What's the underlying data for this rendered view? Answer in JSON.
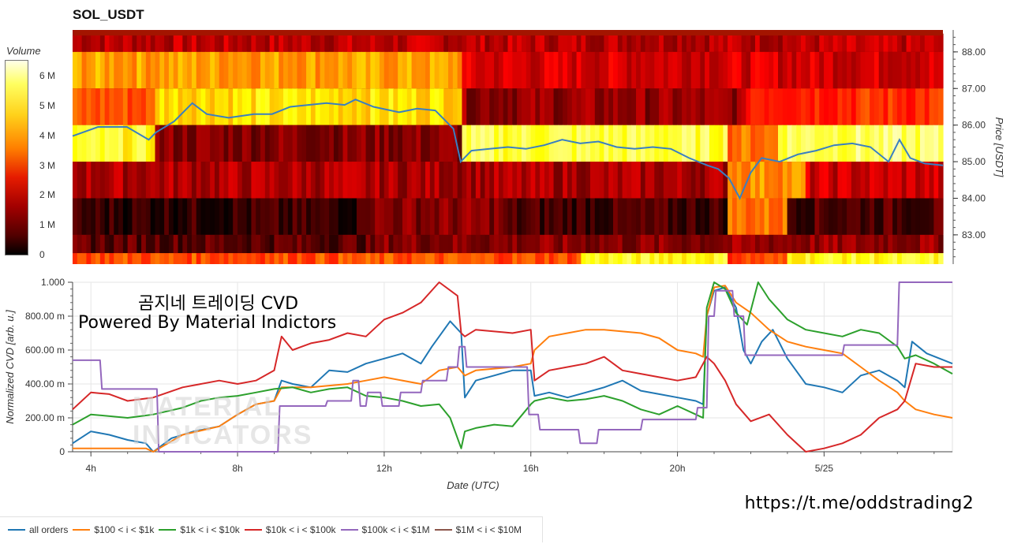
{
  "chart_data": [
    {
      "type": "heatmap",
      "title": "SOL_USDT",
      "colorbar": {
        "label": "Volume",
        "ticks": [
          "6 M",
          "5 M",
          "4 M",
          "3 M",
          "2 M",
          "1 M",
          "0"
        ],
        "range": [
          0,
          6500000
        ],
        "colormap": "hot"
      },
      "y_axis": {
        "label": "Price [USDT]",
        "ticks": [
          "88.00",
          "87.00",
          "86.00",
          "85.00",
          "84.00",
          "83.00"
        ],
        "range": [
          82.2,
          88.6
        ]
      },
      "x_range_hours": [
        3.5,
        27.5
      ],
      "price_bins": [
        82.5,
        83.0,
        84.0,
        85.0,
        86.0,
        87.0,
        88.0,
        88.5
      ],
      "price_line": {
        "x": [
          3.5,
          4.2,
          5.0,
          5.6,
          5.8,
          6.3,
          6.8,
          7.2,
          7.8,
          8.5,
          9.0,
          9.5,
          10.0,
          10.5,
          11.0,
          11.3,
          11.8,
          12.5,
          13.0,
          13.5,
          14.0,
          14.2,
          14.5,
          15.0,
          15.5,
          16.0,
          16.5,
          17.0,
          17.5,
          18.0,
          18.5,
          19.0,
          19.5,
          20.0,
          20.5,
          21.0,
          21.3,
          21.6,
          21.9,
          22.2,
          22.5,
          23.0,
          23.5,
          24.0,
          24.5,
          25.0,
          25.5,
          26.0,
          26.3,
          26.6,
          27.0,
          27.5
        ],
        "y": [
          85.7,
          85.95,
          85.95,
          85.6,
          85.8,
          86.1,
          86.6,
          86.3,
          86.2,
          86.3,
          86.3,
          86.5,
          86.55,
          86.6,
          86.55,
          86.7,
          86.5,
          86.35,
          86.45,
          86.4,
          85.9,
          85.0,
          85.3,
          85.35,
          85.4,
          85.35,
          85.45,
          85.6,
          85.5,
          85.55,
          85.4,
          85.35,
          85.4,
          85.35,
          85.1,
          84.9,
          84.8,
          84.55,
          84.0,
          84.7,
          85.1,
          85.0,
          85.2,
          85.3,
          85.45,
          85.5,
          85.4,
          85.0,
          85.6,
          85.1,
          84.95,
          84.9
        ]
      }
    },
    {
      "type": "line",
      "xlabel": "Date (UTC)",
      "ylabel": "Normalized CVD [arb. u.]",
      "x_ticks": [
        "4h",
        "8h",
        "12h",
        "16h",
        "20h",
        "5/25"
      ],
      "x_tick_hours": [
        4,
        8,
        12,
        16,
        20,
        24
      ],
      "x_range_hours": [
        3.5,
        27.5
      ],
      "y_ticks": [
        "0",
        "200.00 m",
        "400.00 m",
        "600.00 m",
        "800.00 m",
        "1.000"
      ],
      "ylim": [
        0,
        1
      ],
      "legend_position": "bottom",
      "series": [
        {
          "name": "all orders",
          "color": "#1f77b4",
          "x": [
            3.5,
            4.0,
            4.5,
            5.0,
            5.5,
            5.7,
            6.2,
            6.8,
            7.5,
            8.0,
            8.5,
            9.0,
            9.2,
            9.5,
            10.0,
            10.5,
            11.0,
            11.5,
            12.0,
            12.5,
            13.0,
            13.3,
            13.8,
            14.1,
            14.2,
            14.5,
            15.0,
            15.5,
            16.0,
            16.1,
            16.5,
            17.0,
            17.5,
            18.0,
            18.5,
            19.0,
            19.5,
            20.0,
            20.5,
            20.7,
            20.8,
            21.0,
            21.3,
            21.6,
            21.8,
            22.0,
            22.3,
            22.6,
            23.0,
            23.5,
            24.0,
            24.5,
            25.0,
            25.5,
            26.0,
            26.2,
            26.4,
            26.8,
            27.5
          ],
          "y": [
            0.05,
            0.12,
            0.1,
            0.07,
            0.05,
            0.0,
            0.08,
            0.12,
            0.15,
            0.22,
            0.28,
            0.3,
            0.42,
            0.4,
            0.38,
            0.48,
            0.47,
            0.52,
            0.55,
            0.58,
            0.52,
            0.62,
            0.77,
            0.7,
            0.32,
            0.42,
            0.45,
            0.48,
            0.48,
            0.33,
            0.35,
            0.32,
            0.35,
            0.38,
            0.42,
            0.36,
            0.34,
            0.32,
            0.3,
            0.28,
            0.8,
            0.95,
            0.97,
            0.85,
            0.6,
            0.52,
            0.65,
            0.72,
            0.55,
            0.4,
            0.38,
            0.35,
            0.45,
            0.48,
            0.42,
            0.38,
            0.65,
            0.58,
            0.52
          ]
        },
        {
          "name": "$100 < i < $1k",
          "color": "#ff7f0e",
          "x": [
            3.5,
            4.5,
            5.5,
            5.7,
            6.5,
            7.5,
            8.0,
            8.5,
            9.0,
            9.2,
            10.0,
            11.0,
            11.5,
            12.0,
            13.0,
            13.5,
            14.0,
            14.2,
            14.5,
            15.5,
            16.0,
            16.1,
            16.5,
            17.0,
            17.5,
            18.0,
            19.0,
            19.5,
            20.0,
            20.5,
            20.7,
            20.8,
            21.0,
            21.3,
            21.6,
            22.0,
            22.5,
            23.0,
            23.5,
            24.0,
            24.5,
            25.0,
            25.5,
            26.0,
            26.2,
            26.5,
            27.0,
            27.5
          ],
          "y": [
            0.02,
            0.02,
            0.02,
            0.0,
            0.1,
            0.15,
            0.22,
            0.28,
            0.3,
            0.38,
            0.38,
            0.4,
            0.42,
            0.44,
            0.4,
            0.48,
            0.5,
            0.45,
            0.48,
            0.5,
            0.52,
            0.6,
            0.68,
            0.7,
            0.72,
            0.72,
            0.7,
            0.67,
            0.6,
            0.58,
            0.56,
            0.8,
            0.97,
            0.98,
            0.88,
            0.82,
            0.72,
            0.65,
            0.62,
            0.6,
            0.58,
            0.5,
            0.42,
            0.35,
            0.3,
            0.25,
            0.22,
            0.2
          ]
        },
        {
          "name": "$1k < i < $10k",
          "color": "#2ca02c",
          "x": [
            3.5,
            4.0,
            5.0,
            5.7,
            6.5,
            7.0,
            7.5,
            8.0,
            8.5,
            9.0,
            9.5,
            10.0,
            10.5,
            11.0,
            11.5,
            12.0,
            12.5,
            13.0,
            13.5,
            13.8,
            14.1,
            14.2,
            14.5,
            15.0,
            15.5,
            16.0,
            16.1,
            16.5,
            17.0,
            17.5,
            18.0,
            18.5,
            19.0,
            19.5,
            20.0,
            20.5,
            20.7,
            20.8,
            21.0,
            21.3,
            21.6,
            21.9,
            22.2,
            22.5,
            23.0,
            23.5,
            24.0,
            24.5,
            25.0,
            25.5,
            26.0,
            26.2,
            26.5,
            27.0,
            27.5
          ],
          "y": [
            0.16,
            0.22,
            0.2,
            0.22,
            0.26,
            0.3,
            0.32,
            0.33,
            0.35,
            0.37,
            0.38,
            0.35,
            0.37,
            0.38,
            0.33,
            0.32,
            0.3,
            0.27,
            0.28,
            0.2,
            0.02,
            0.12,
            0.14,
            0.16,
            0.15,
            0.28,
            0.3,
            0.32,
            0.3,
            0.31,
            0.33,
            0.3,
            0.25,
            0.22,
            0.27,
            0.22,
            0.2,
            0.85,
            1.0,
            0.96,
            0.82,
            0.75,
            1.0,
            0.9,
            0.78,
            0.72,
            0.7,
            0.68,
            0.72,
            0.7,
            0.62,
            0.55,
            0.57,
            0.52,
            0.46
          ]
        },
        {
          "name": "$10k < i < $100k",
          "color": "#d62728",
          "x": [
            3.5,
            4.0,
            4.5,
            5.0,
            5.7,
            6.5,
            7.5,
            8.0,
            8.5,
            9.0,
            9.2,
            9.5,
            10.0,
            10.5,
            11.0,
            11.5,
            12.0,
            12.5,
            13.0,
            13.5,
            14.0,
            14.1,
            14.2,
            14.5,
            15.5,
            16.0,
            16.1,
            16.5,
            17.0,
            17.5,
            18.0,
            18.5,
            19.0,
            19.5,
            20.0,
            20.5,
            20.7,
            20.8,
            21.0,
            21.3,
            21.6,
            22.0,
            22.5,
            23.0,
            23.5,
            24.0,
            24.5,
            25.0,
            25.5,
            26.0,
            26.2,
            26.5,
            27.0,
            27.5
          ],
          "y": [
            0.25,
            0.35,
            0.34,
            0.3,
            0.32,
            0.38,
            0.42,
            0.4,
            0.42,
            0.48,
            0.68,
            0.6,
            0.64,
            0.66,
            0.7,
            0.68,
            0.78,
            0.82,
            0.88,
            1.0,
            0.92,
            0.7,
            0.68,
            0.72,
            0.7,
            0.72,
            0.42,
            0.48,
            0.5,
            0.52,
            0.56,
            0.48,
            0.46,
            0.44,
            0.42,
            0.44,
            0.52,
            0.56,
            0.52,
            0.42,
            0.28,
            0.18,
            0.22,
            0.1,
            0.0,
            0.02,
            0.05,
            0.1,
            0.2,
            0.25,
            0.3,
            0.52,
            0.5,
            0.5
          ]
        },
        {
          "name": "$100k < i < $1M",
          "color": "#9467bd",
          "x": [
            3.5,
            4.25,
            4.3,
            5.8,
            5.85,
            9.1,
            9.15,
            10.4,
            10.45,
            11.1,
            11.15,
            11.3,
            11.35,
            11.5,
            11.55,
            11.9,
            11.95,
            12.4,
            12.45,
            13.0,
            13.05,
            13.7,
            13.75,
            14.0,
            14.05,
            14.2,
            14.25,
            15.9,
            15.95,
            16.2,
            16.25,
            17.3,
            17.35,
            17.8,
            17.85,
            19.0,
            19.05,
            20.5,
            20.55,
            20.8,
            20.85,
            21.0,
            21.05,
            21.5,
            21.55,
            21.8,
            21.85,
            24.5,
            24.55,
            26.0,
            26.05,
            27.5
          ],
          "y": [
            0.54,
            0.54,
            0.37,
            0.37,
            0.0,
            0.0,
            0.27,
            0.27,
            0.3,
            0.3,
            0.42,
            0.42,
            0.27,
            0.27,
            0.35,
            0.35,
            0.27,
            0.27,
            0.35,
            0.35,
            0.42,
            0.42,
            0.5,
            0.5,
            0.62,
            0.62,
            0.5,
            0.5,
            0.22,
            0.22,
            0.13,
            0.13,
            0.05,
            0.05,
            0.13,
            0.13,
            0.19,
            0.19,
            0.26,
            0.26,
            0.8,
            0.8,
            0.95,
            0.95,
            0.8,
            0.8,
            0.57,
            0.57,
            0.63,
            0.63,
            1.0,
            1.0
          ]
        },
        {
          "name": "$1M < i < $10M",
          "color": "#8c564b",
          "x": [],
          "y": []
        }
      ]
    }
  ],
  "annotation": {
    "line1": "곰지네 트레이딩 CVD",
    "line2": "Powered By Material Indictors"
  },
  "watermark": {
    "line1": "MATERIAL",
    "line2": "INDICATORS"
  },
  "footer_link": "https://t.me/oddstrading2"
}
